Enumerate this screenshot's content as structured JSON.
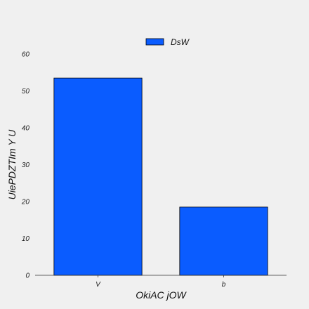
{
  "chart_data": {
    "type": "bar",
    "title": "",
    "xlabel": "OkiAC jOW",
    "ylabel": "UiePDZTIm Y U",
    "categories": [
      "V",
      "b"
    ],
    "series": [
      {
        "name": "DsW",
        "values": [
          53.5,
          18.5
        ],
        "color": "#0a5cff"
      }
    ],
    "ylim": [
      0,
      60
    ],
    "yticks": [
      0,
      10,
      20,
      30,
      40,
      50,
      60
    ],
    "grid": false,
    "legend": "top-center",
    "background": "#f0f0f0",
    "bar_edge_color": "#000000"
  }
}
